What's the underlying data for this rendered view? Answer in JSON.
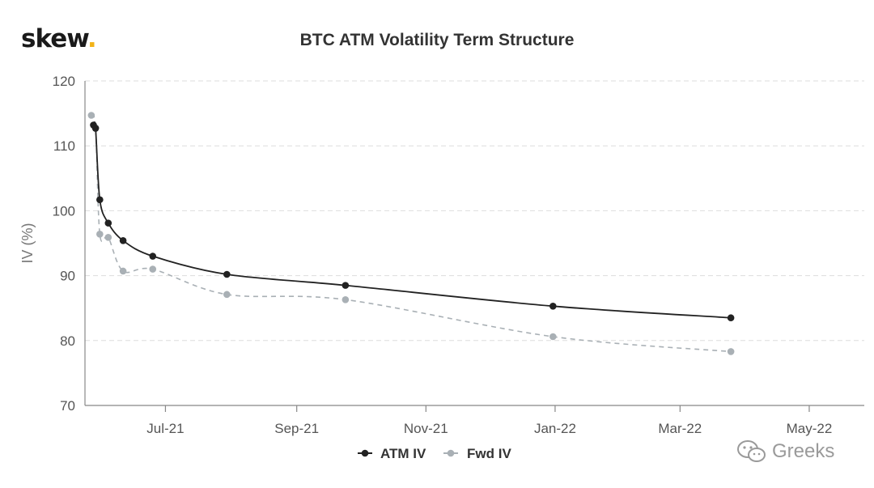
{
  "brand": {
    "name": "skew",
    "dot": "."
  },
  "watermark": {
    "text": "Greeks",
    "icon": "wechat-icon"
  },
  "colors": {
    "atm": "#222222",
    "fwd": "#a9b0b5",
    "grid": "#dddddd",
    "axis": "#555555",
    "accent": "#f2b318"
  },
  "chart_data": {
    "type": "line",
    "title": "BTC ATM Volatility Term Structure",
    "ylabel": "IV (%)",
    "xlabel": "",
    "ylim": [
      70,
      120
    ],
    "yticks": [
      70,
      80,
      90,
      100,
      110,
      120
    ],
    "xlim": [
      "2021-05-24",
      "2022-05-27"
    ],
    "xticks": [
      {
        "date": "2021-07-01",
        "label": "Jul-21"
      },
      {
        "date": "2021-09-01",
        "label": "Sep-21"
      },
      {
        "date": "2021-11-01",
        "label": "Nov-21"
      },
      {
        "date": "2022-01-01",
        "label": "Jan-22"
      },
      {
        "date": "2022-03-01",
        "label": "Mar-22"
      },
      {
        "date": "2022-05-01",
        "label": "May-22"
      }
    ],
    "grid": true,
    "legend": "bottom-center",
    "series": [
      {
        "name": "ATM IV",
        "style": "solid",
        "points": [
          {
            "x": "2021-05-28",
            "y": 113.2
          },
          {
            "x": "2021-05-29",
            "y": 112.7
          },
          {
            "x": "2021-05-31",
            "y": 101.7
          },
          {
            "x": "2021-06-04",
            "y": 98.1
          },
          {
            "x": "2021-06-11",
            "y": 95.4
          },
          {
            "x": "2021-06-25",
            "y": 93.0
          },
          {
            "x": "2021-07-30",
            "y": 90.2
          },
          {
            "x": "2021-09-24",
            "y": 88.5
          },
          {
            "x": "2021-12-31",
            "y": 85.3
          },
          {
            "x": "2022-03-25",
            "y": 83.5
          }
        ]
      },
      {
        "name": "Fwd IV",
        "style": "dashed",
        "points": [
          {
            "x": "2021-05-27",
            "y": 114.7
          },
          {
            "x": "2021-05-29",
            "y": 112.8
          },
          {
            "x": "2021-05-31",
            "y": 96.4
          },
          {
            "x": "2021-06-04",
            "y": 95.9
          },
          {
            "x": "2021-06-11",
            "y": 90.7
          },
          {
            "x": "2021-06-25",
            "y": 91.0
          },
          {
            "x": "2021-07-30",
            "y": 87.1
          },
          {
            "x": "2021-09-24",
            "y": 86.3
          },
          {
            "x": "2021-12-31",
            "y": 80.6
          },
          {
            "x": "2022-03-25",
            "y": 78.3
          }
        ]
      }
    ]
  }
}
